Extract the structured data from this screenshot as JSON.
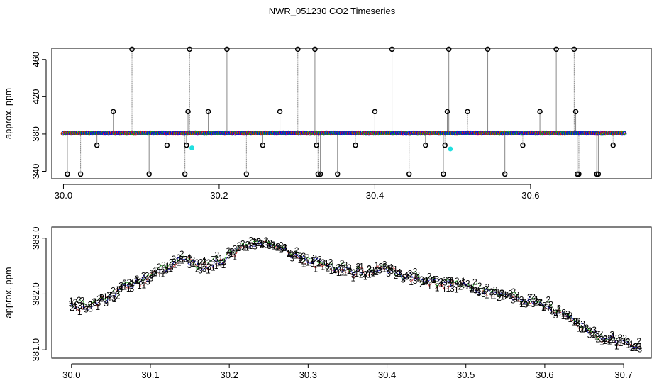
{
  "title": "NWR_051230  CO2 Timeseries",
  "chart_data": [
    {
      "type": "scatter",
      "panel": "top",
      "ylabel": "approx. ppm",
      "xlabel": "",
      "xlim": [
        29.985,
        30.755
      ],
      "ylim": [
        332,
        472
      ],
      "xticks": [
        30.0,
        30.2,
        30.4,
        30.6
      ],
      "xtick_labels": [
        "30.0",
        "30.2",
        "30.4",
        "30.6"
      ],
      "yticks": [
        340,
        380,
        420,
        460
      ],
      "ytick_labels": [
        "340",
        "380",
        "420",
        "460"
      ],
      "baseline": 381,
      "baseline_x_range": [
        30.0,
        30.72
      ],
      "outliers": {
        "x": [
          30.005,
          30.022,
          30.043,
          30.064,
          30.088,
          30.11,
          30.133,
          30.156,
          30.158,
          30.16,
          30.162,
          30.186,
          30.21,
          30.235,
          30.256,
          30.278,
          30.301,
          30.323,
          30.325,
          30.327,
          30.33,
          30.352,
          30.375,
          30.4,
          30.422,
          30.444,
          30.465,
          30.488,
          30.49,
          30.493,
          30.495,
          30.519,
          30.545,
          30.567,
          30.59,
          30.612,
          30.633,
          30.656,
          30.658,
          30.66,
          30.662,
          30.685,
          30.687,
          30.706
        ],
        "y": [
          337,
          337,
          368,
          404,
          471,
          337,
          368,
          337,
          368,
          404,
          471,
          404,
          471,
          337,
          368,
          404,
          471,
          471,
          368,
          337,
          337,
          337,
          368,
          404,
          471,
          337,
          368,
          337,
          368,
          404,
          471,
          404,
          471,
          337,
          368,
          404,
          471,
          471,
          404,
          337,
          337,
          337,
          337,
          368
        ]
      },
      "special_points": {
        "x": [
          30.165,
          30.497
        ],
        "y": [
          365,
          364
        ]
      },
      "colors": {
        "outlier": "#000000",
        "line": "#888888",
        "series1": "#ff0000",
        "series2": "#00c000",
        "series3": "#0000ff",
        "special": "#22e0e0"
      }
    },
    {
      "type": "line",
      "panel": "bottom",
      "ylabel": "approx. ppm",
      "xlabel": "",
      "xlim": [
        29.975,
        30.735
      ],
      "ylim": [
        380.85,
        383.2
      ],
      "xticks": [
        30.0,
        30.1,
        30.2,
        30.3,
        30.4,
        30.5,
        30.6,
        30.7
      ],
      "xtick_labels": [
        "30.0",
        "30.1",
        "30.2",
        "30.3",
        "30.4",
        "30.5",
        "30.6",
        "30.7"
      ],
      "yticks": [
        381.0,
        382.0,
        383.0
      ],
      "ytick_labels": [
        "381.0",
        "382.0",
        "383.0"
      ],
      "series": [
        {
          "name": "1",
          "color": "#cc0000",
          "trend_offset": -0.1
        },
        {
          "name": "2",
          "color": "#00aa00",
          "trend_offset": 0.08
        },
        {
          "name": "3",
          "color": "#0000cc",
          "trend_offset": -0.03
        }
      ],
      "trend": {
        "x": [
          30.0,
          30.03,
          30.06,
          30.09,
          30.12,
          30.14,
          30.16,
          30.19,
          30.21,
          30.23,
          30.26,
          30.28,
          30.3,
          30.33,
          30.36,
          30.4,
          30.43,
          30.46,
          30.5,
          30.53,
          30.56,
          30.6,
          30.63,
          30.66,
          30.69,
          30.72
        ],
        "y": [
          381.8,
          381.8,
          382.05,
          382.25,
          382.5,
          382.65,
          382.5,
          382.6,
          382.8,
          382.95,
          382.9,
          382.7,
          382.6,
          382.5,
          382.4,
          382.45,
          382.3,
          382.2,
          382.15,
          382.05,
          381.95,
          381.8,
          381.6,
          381.3,
          381.2,
          381.05
        ]
      }
    }
  ]
}
